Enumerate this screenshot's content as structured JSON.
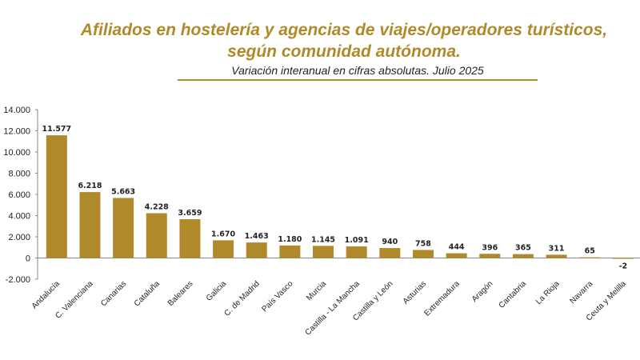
{
  "title_line1": "Afiliados en hostelería y agencias de viajes/operadores turísticos,",
  "title_line2": "según comunidad autónoma.",
  "subtitle": "Variación interanual en cifras absolutas. Julio 2025",
  "colors": {
    "bar": "#b08a2a",
    "negative_label": "#e0241b",
    "title": "#b08a2a"
  },
  "chart_data": {
    "type": "bar",
    "categories": [
      "Andalucía",
      "C. Valenciana",
      "Canarias",
      "Cataluña",
      "Baleares",
      "Galicia",
      "C. de Madrid",
      "País Vasco",
      "Murcia",
      "Castilla - La Mancha",
      "Castilla y León",
      "Asturias",
      "Extremadura",
      "Aragón",
      "Cantabria",
      "La Rioja",
      "Navarra",
      "Ceuta y Melilla"
    ],
    "values": [
      11577,
      6218,
      5663,
      4228,
      3659,
      1670,
      1463,
      1180,
      1145,
      1091,
      940,
      758,
      444,
      396,
      365,
      311,
      65,
      -2
    ],
    "value_labels": [
      "11.577",
      "6.218",
      "5.663",
      "4.228",
      "3.659",
      "1.670",
      "1.463",
      "1.180",
      "1.145",
      "1.091",
      "940",
      "758",
      "444",
      "396",
      "365",
      "311",
      "65",
      "-2"
    ],
    "yticks": [
      "-2.000",
      "0",
      "2.000",
      "4.000",
      "6.000",
      "8.000",
      "10.000",
      "12.000",
      "14.000"
    ],
    "ylim": [
      -2000,
      14000
    ],
    "xlabel": "",
    "ylabel": "",
    "grid": false
  }
}
